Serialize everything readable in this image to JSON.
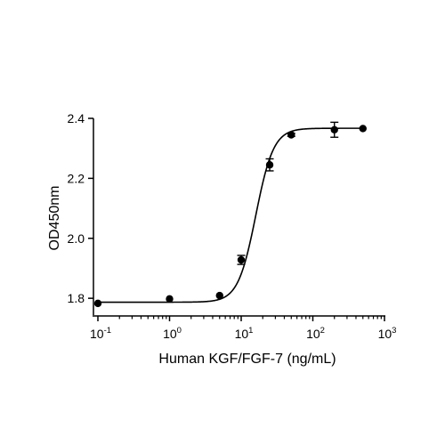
{
  "chart_data": {
    "type": "scatter",
    "title": "",
    "xlabel": "Human KGF/FGF-7 (ng/mL)",
    "ylabel": "OD450nm",
    "xscale": "log",
    "xlim": [
      0.1,
      1000
    ],
    "ylim": [
      1.75,
      2.4
    ],
    "xticks": [
      {
        "base": "10",
        "exp": "-1",
        "value": 0.1
      },
      {
        "base": "10",
        "exp": "0",
        "value": 1
      },
      {
        "base": "10",
        "exp": "1",
        "value": 10
      },
      {
        "base": "10",
        "exp": "2",
        "value": 100
      },
      {
        "base": "10",
        "exp": "3",
        "value": 1000
      }
    ],
    "yticks": [
      "1.8",
      "2.0",
      "2.2",
      "2.4"
    ],
    "grid": false,
    "legend": "none",
    "color": "#000000",
    "series": [
      {
        "x": [
          0.1,
          1,
          5,
          10,
          25,
          50,
          200,
          500
        ],
        "y": [
          1.783,
          1.798,
          1.809,
          1.928,
          2.245,
          2.345,
          2.362,
          2.366
        ],
        "err": [
          0,
          0,
          0,
          0.015,
          0.02,
          0.005,
          0.025,
          0
        ]
      }
    ],
    "fit": {
      "model": "4PL",
      "bottom": 1.787,
      "top": 2.367,
      "ec50": 16,
      "hill": 3.5
    }
  }
}
